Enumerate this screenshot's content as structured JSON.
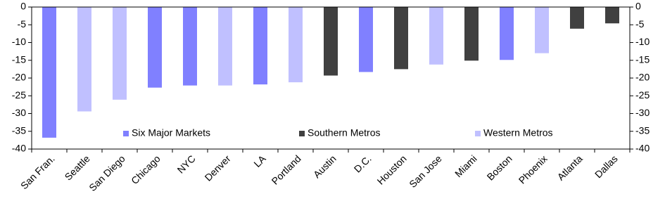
{
  "chart_data": {
    "type": "bar",
    "categories": [
      "San Fran.",
      "Seattle",
      "San Diego",
      "Chicago",
      "NYC",
      "Denver",
      "LA",
      "Portland",
      "Austin",
      "D.C.",
      "Houston",
      "San Jose",
      "Miami",
      "Boston",
      "Phoenix",
      "Atlanta",
      "Dallas"
    ],
    "series": [
      {
        "name": "Six Major Markets",
        "color": "#8080ff",
        "values": [
          -36.8,
          null,
          null,
          -22.7,
          -22.1,
          null,
          -21.8,
          null,
          null,
          -18.3,
          null,
          null,
          null,
          -14.9,
          null,
          null,
          null
        ]
      },
      {
        "name": "Southern Metros",
        "color": "#404040",
        "values": [
          null,
          null,
          null,
          null,
          null,
          null,
          null,
          null,
          -19.3,
          null,
          -17.5,
          null,
          -15.1,
          null,
          null,
          -6.1,
          -4.6
        ]
      },
      {
        "name": "Western Metros",
        "color": "#c0c0ff",
        "values": [
          null,
          -29.4,
          -26.1,
          null,
          null,
          -22.1,
          null,
          -21.2,
          null,
          null,
          null,
          -16.2,
          null,
          null,
          -13.0,
          null,
          null
        ]
      }
    ],
    "ylim": [
      0,
      -40
    ],
    "yticks": [
      0,
      -5,
      -10,
      -15,
      -20,
      -25,
      -30,
      -35,
      -40
    ],
    "y2lim": [
      0,
      -40
    ],
    "y2ticks": [
      0,
      -5,
      -10,
      -15,
      -20,
      -25,
      -30,
      -35,
      -40
    ],
    "legend": "bottom"
  }
}
